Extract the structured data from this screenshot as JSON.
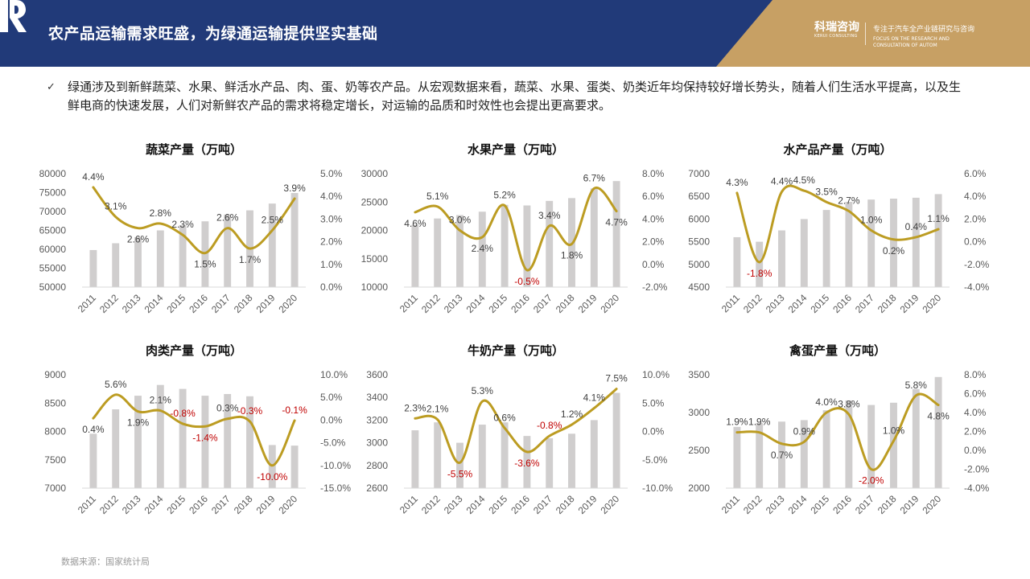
{
  "header": {
    "title": "农产品运输需求旺盛，为绿通运输提供坚实基础",
    "logo_name": "科瑞咨询",
    "logo_sub": "KERUI CONSULTING",
    "slogan": "专注于汽车全产业链研究与咨询",
    "slogan_en": "FOCUS ON THE RESEARCH AND CONSULTATION OF AUTOM",
    "bg_color": "#213a79",
    "accent_color": "#c7a064"
  },
  "intro": {
    "check": "✓",
    "text": "绿通涉及到新鲜蔬菜、水果、鲜活水产品、肉、蛋、奶等农产品。从宏观数据来看，蔬菜、水果、蛋类、奶类近年均保持较好增长势头，随着人们生活水平提高，以及生鲜电商的快速发展，人们对新鲜农产品的需求将稳定增长，对运输的品质和时效性也会提出更高要求。"
  },
  "source": "数据来源：国家统计局",
  "colors": {
    "bar": "#d0cece",
    "line": "#bc9c22",
    "negative_label": "#c00000"
  },
  "chart_data": [
    {
      "type": "bar+line",
      "title": "蔬菜产量（万吨）",
      "categories": [
        "2011",
        "2012",
        "2013",
        "2014",
        "2015",
        "2016",
        "2017",
        "2018",
        "2019",
        "2020"
      ],
      "bars": [
        59800,
        61600,
        63200,
        65000,
        66400,
        67400,
        69200,
        70300,
        72100,
        74900
      ],
      "line": [
        4.4,
        3.1,
        2.6,
        2.8,
        2.3,
        1.5,
        2.6,
        1.7,
        2.5,
        3.9
      ],
      "line_labels": [
        "4.4%",
        "3.1%",
        "2.6%",
        "2.8%",
        "2.3%",
        "1.5%",
        "2.6%",
        "1.7%",
        "2.5%",
        "3.9%"
      ],
      "left_axis": {
        "min": 50000,
        "max": 80000,
        "step": 5000,
        "ticks": [
          "50000",
          "55000",
          "60000",
          "65000",
          "70000",
          "75000",
          "80000"
        ]
      },
      "right_axis": {
        "min": 0,
        "max": 5,
        "step": 1,
        "ticks": [
          "0.0%",
          "1.0%",
          "2.0%",
          "3.0%",
          "4.0%",
          "5.0%"
        ]
      }
    },
    {
      "type": "bar+line",
      "title": "水果产量（万吨）",
      "categories": [
        "2011",
        "2012",
        "2013",
        "2014",
        "2015",
        "2016",
        "2017",
        "2018",
        "2019",
        "2020"
      ],
      "bars": [
        21000,
        22100,
        22700,
        23300,
        24500,
        24400,
        25200,
        25700,
        27400,
        28700
      ],
      "line": [
        4.6,
        5.1,
        3.0,
        2.4,
        5.2,
        -0.5,
        3.4,
        1.8,
        6.7,
        4.7
      ],
      "line_labels": [
        "4.6%",
        "5.1%",
        "3.0%",
        "2.4%",
        "5.2%",
        "-0.5%",
        "3.4%",
        "1.8%",
        "6.7%",
        "4.7%"
      ],
      "left_axis": {
        "min": 10000,
        "max": 30000,
        "step": 5000,
        "ticks": [
          "10000",
          "15000",
          "20000",
          "25000",
          "30000"
        ]
      },
      "right_axis": {
        "min": -2,
        "max": 8,
        "step": 2,
        "ticks": [
          "-2.0%",
          "0.0%",
          "2.0%",
          "4.0%",
          "6.0%",
          "8.0%"
        ]
      }
    },
    {
      "type": "bar+line",
      "title": "水产品产量（万吨）",
      "categories": [
        "2011",
        "2012",
        "2013",
        "2014",
        "2015",
        "2016",
        "2017",
        "2018",
        "2019",
        "2020"
      ],
      "bars": [
        5600,
        5500,
        5750,
        6000,
        6200,
        6380,
        6430,
        6450,
        6470,
        6550
      ],
      "line": [
        4.3,
        -1.8,
        4.4,
        4.5,
        3.5,
        2.7,
        1.0,
        0.2,
        0.4,
        1.1
      ],
      "line_labels": [
        "4.3%",
        "-1.8%",
        "4.4%",
        "4.5%",
        "3.5%",
        "2.7%",
        "1.0%",
        "0.2%",
        "0.4%",
        "1.1%"
      ],
      "left_axis": {
        "min": 4500,
        "max": 7000,
        "step": 500,
        "ticks": [
          "4500",
          "5000",
          "5500",
          "6000",
          "6500",
          "7000"
        ]
      },
      "right_axis": {
        "min": -4,
        "max": 6,
        "step": 2,
        "ticks": [
          "-4.0%",
          "-2.0%",
          "0.0%",
          "2.0%",
          "4.0%",
          "6.0%"
        ]
      }
    },
    {
      "type": "bar+line",
      "title": "肉类产量（万吨）",
      "categories": [
        "2011",
        "2012",
        "2013",
        "2014",
        "2015",
        "2016",
        "2017",
        "2018",
        "2019",
        "2020"
      ],
      "bars": [
        7960,
        8390,
        8630,
        8820,
        8750,
        8630,
        8660,
        8620,
        7760,
        7750
      ],
      "line": [
        0.4,
        5.6,
        1.9,
        2.1,
        -0.8,
        -1.4,
        0.3,
        -0.3,
        -10.0,
        -0.1
      ],
      "line_labels": [
        "0.4%",
        "5.6%",
        "1.9%",
        "2.1%",
        "-0.8%",
        "-1.4%",
        "0.3%",
        "-0.3%",
        "-10.0%",
        "-0.1%"
      ],
      "left_axis": {
        "min": 7000,
        "max": 9000,
        "step": 500,
        "ticks": [
          "7000",
          "7500",
          "8000",
          "8500",
          "9000"
        ]
      },
      "right_axis": {
        "min": -15,
        "max": 10,
        "step": 5,
        "ticks": [
          "-15.0%",
          "-10.0%",
          "-5.0%",
          "0.0%",
          "5.0%",
          "10.0%"
        ]
      }
    },
    {
      "type": "bar+line",
      "title": "牛奶产量（万吨）",
      "categories": [
        "2011",
        "2012",
        "2013",
        "2014",
        "2015",
        "2016",
        "2017",
        "2018",
        "2019",
        "2020"
      ],
      "bars": [
        3110,
        3180,
        3000,
        3160,
        3180,
        3060,
        3040,
        3080,
        3200,
        3440
      ],
      "line": [
        2.3,
        2.1,
        -5.5,
        5.3,
        0.6,
        -3.6,
        -0.8,
        1.2,
        4.1,
        7.5
      ],
      "line_labels": [
        "2.3%",
        "2.1%",
        "-5.5%",
        "5.3%",
        "0.6%",
        "-3.6%",
        "-0.8%",
        "1.2%",
        "4.1%",
        "7.5%"
      ],
      "left_axis": {
        "min": 2600,
        "max": 3600,
        "step": 200,
        "ticks": [
          "2600",
          "2800",
          "3000",
          "3200",
          "3400",
          "3600"
        ]
      },
      "right_axis": {
        "min": -10,
        "max": 10,
        "step": 5,
        "ticks": [
          "-10.0%",
          "-5.0%",
          "0.0%",
          "5.0%",
          "10.0%"
        ]
      }
    },
    {
      "type": "bar+line",
      "title": "禽蛋产量（万吨）",
      "categories": [
        "2011",
        "2012",
        "2013",
        "2014",
        "2015",
        "2016",
        "2017",
        "2018",
        "2019",
        "2020"
      ],
      "bars": [
        2810,
        2860,
        2880,
        2900,
        3030,
        3160,
        3100,
        3130,
        3310,
        3470
      ],
      "line": [
        1.9,
        1.9,
        0.7,
        0.9,
        4.0,
        3.8,
        -2.0,
        1.0,
        5.8,
        4.8
      ],
      "line_labels": [
        "1.9%",
        "1.9%",
        "0.7%",
        "0.9%",
        "4.0%",
        "3.8%",
        "-2.0%",
        "1.0%",
        "5.8%",
        "4.8%"
      ],
      "left_axis": {
        "min": 2000,
        "max": 3500,
        "step": 500,
        "ticks": [
          "2000",
          "2500",
          "3000",
          "3500"
        ]
      },
      "right_axis": {
        "min": -4,
        "max": 8,
        "step": 2,
        "ticks": [
          "-4.0%",
          "-2.0%",
          "0.0%",
          "2.0%",
          "4.0%",
          "6.0%",
          "8.0%"
        ]
      }
    }
  ]
}
